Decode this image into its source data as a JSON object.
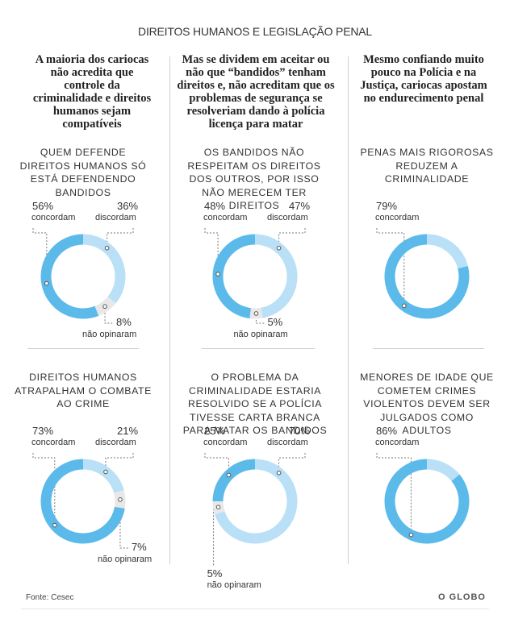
{
  "title": "DIREITOS HUMANOS E LEGISLAÇÃO PENAL",
  "columns": [
    {
      "heading": "A maioria dos cariocas não acredita que controle da criminalidade e direitos humanos sejam compatíveis"
    },
    {
      "heading": "Mas se dividem em aceitar ou não que “bandidos” tenham direitos e, não acreditam que os problemas de segurança se resolveriam dando à polícia licença para matar"
    },
    {
      "heading": "Mesmo confiando muito pouco na Polícia e na Justiça, cariocas apostam no endurecimento penal"
    }
  ],
  "labels": {
    "concordam": "concordam",
    "discordam": "discordam",
    "nao_opinaram": "não opinaram"
  },
  "colors": {
    "concordam": "#5bbaea",
    "discordam": "#b9e0f6",
    "nao_opinaram": "#e8e8e8"
  },
  "chart_data": [
    {
      "type": "pie",
      "question": "QUEM DEFENDE DIREITOS HUMANOS SÓ ESTÁ DEFENDENDO BANDIDOS",
      "concordam": 56,
      "discordam": 36,
      "nao_opinaram": 8,
      "concordam_text": "56%",
      "discordam_text": "36%",
      "nao_opinaram_text": "8%"
    },
    {
      "type": "pie",
      "question": "OS BANDIDOS NÃO RESPEITAM OS DIREITOS DOS OUTROS, POR ISSO NÃO MERECEM TER DIREITOS",
      "concordam": 48,
      "discordam": 47,
      "nao_opinaram": 5,
      "concordam_text": "48%",
      "discordam_text": "47%",
      "nao_opinaram_text": "5%"
    },
    {
      "type": "pie",
      "question": "PENAS MAIS RIGOROSAS REDUZEM A CRIMINALIDADE",
      "concordam": 79,
      "discordam": 21,
      "nao_opinaram": null,
      "concordam_text": "79%"
    },
    {
      "type": "pie",
      "question": "DIREITOS HUMANOS ATRAPALHAM O COMBATE AO CRIME",
      "concordam": 73,
      "discordam": 21,
      "nao_opinaram": 7,
      "concordam_text": "73%",
      "discordam_text": "21%",
      "nao_opinaram_text": "7%"
    },
    {
      "type": "pie",
      "question": "O PROBLEMA DA CRIMINALIDADE ESTARIA RESOLVIDO SE A POLÍCIA TIVESSE CARTA BRANCA PARA MATAR OS BANDIDOS",
      "concordam": 25,
      "discordam": 70,
      "nao_opinaram": 5,
      "concordam_text": "25%",
      "discordam_text": "70%",
      "nao_opinaram_text": "5%"
    },
    {
      "type": "pie",
      "question": "MENORES DE IDADE QUE COMETEM CRIMES VIOLENTOS DEVEM SER JULGADOS COMO ADULTOS",
      "concordam": 86,
      "discordam": 14,
      "nao_opinaram": null,
      "concordam_text": "86%"
    }
  ],
  "footer": {
    "source": "Fonte: Cesec",
    "logo": "O GLOBO"
  }
}
